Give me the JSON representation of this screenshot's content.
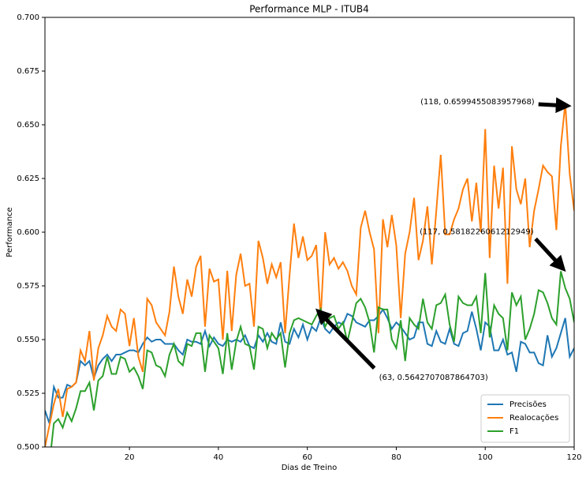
{
  "chart_data": {
    "type": "line",
    "title": "Performance MLP - ITUB4",
    "xlabel": "Dias de Treino",
    "ylabel": "Performance",
    "x": [
      1,
      2,
      3,
      4,
      5,
      6,
      7,
      8,
      9,
      10,
      11,
      12,
      13,
      14,
      15,
      16,
      17,
      18,
      19,
      20,
      21,
      22,
      23,
      24,
      25,
      26,
      27,
      28,
      29,
      30,
      31,
      32,
      33,
      34,
      35,
      36,
      37,
      38,
      39,
      40,
      41,
      42,
      43,
      44,
      45,
      46,
      47,
      48,
      49,
      50,
      51,
      52,
      53,
      54,
      55,
      56,
      57,
      58,
      59,
      60,
      61,
      62,
      63,
      64,
      65,
      66,
      67,
      68,
      69,
      70,
      71,
      72,
      73,
      74,
      75,
      76,
      77,
      78,
      79,
      80,
      81,
      82,
      83,
      84,
      85,
      86,
      87,
      88,
      89,
      90,
      91,
      92,
      93,
      94,
      95,
      96,
      97,
      98,
      99,
      100,
      101,
      102,
      103,
      104,
      105,
      106,
      107,
      108,
      109,
      110,
      111,
      112,
      113,
      114,
      115,
      116,
      117,
      118,
      119,
      120
    ],
    "series": [
      {
        "name": "Precisões",
        "color": "#1f77b4",
        "values": [
          0.517,
          0.511,
          0.528,
          0.523,
          0.523,
          0.529,
          0.528,
          0.53,
          0.54,
          0.538,
          0.54,
          0.532,
          0.538,
          0.541,
          0.543,
          0.54,
          0.543,
          0.543,
          0.544,
          0.545,
          0.545,
          0.544,
          0.548,
          0.551,
          0.549,
          0.55,
          0.55,
          0.548,
          0.548,
          0.548,
          0.545,
          0.543,
          0.55,
          0.549,
          0.549,
          0.548,
          0.554,
          0.547,
          0.551,
          0.548,
          0.547,
          0.55,
          0.549,
          0.55,
          0.549,
          0.552,
          0.547,
          0.546,
          0.552,
          0.549,
          0.553,
          0.549,
          0.548,
          0.558,
          0.549,
          0.548,
          0.555,
          0.551,
          0.557,
          0.55,
          0.556,
          0.554,
          0.56,
          0.555,
          0.553,
          0.556,
          0.558,
          0.557,
          0.562,
          0.561,
          0.558,
          0.557,
          0.556,
          0.559,
          0.559,
          0.561,
          0.564,
          0.56,
          0.555,
          0.558,
          0.556,
          0.553,
          0.55,
          0.551,
          0.558,
          0.558,
          0.548,
          0.547,
          0.554,
          0.549,
          0.548,
          0.555,
          0.548,
          0.547,
          0.553,
          0.554,
          0.563,
          0.555,
          0.545,
          0.558,
          0.556,
          0.545,
          0.545,
          0.55,
          0.543,
          0.544,
          0.535,
          0.549,
          0.548,
          0.544,
          0.544,
          0.539,
          0.538,
          0.552,
          0.542,
          0.546,
          0.553,
          0.56,
          0.542,
          0.546
        ]
      },
      {
        "name": "Realocações",
        "color": "#ff7f0e",
        "values": [
          0.5,
          0.51,
          0.52,
          0.527,
          0.514,
          0.527,
          0.528,
          0.53,
          0.545,
          0.54,
          0.554,
          0.531,
          0.546,
          0.552,
          0.561,
          0.556,
          0.554,
          0.564,
          0.562,
          0.547,
          0.56,
          0.542,
          0.535,
          0.569,
          0.566,
          0.558,
          0.555,
          0.552,
          0.563,
          0.584,
          0.57,
          0.562,
          0.578,
          0.57,
          0.584,
          0.589,
          0.556,
          0.583,
          0.577,
          0.578,
          0.55,
          0.582,
          0.554,
          0.58,
          0.59,
          0.575,
          0.576,
          0.556,
          0.596,
          0.588,
          0.576,
          0.585,
          0.579,
          0.586,
          0.553,
          0.58,
          0.604,
          0.588,
          0.598,
          0.587,
          0.589,
          0.594,
          0.56,
          0.6,
          0.585,
          0.588,
          0.583,
          0.586,
          0.582,
          0.575,
          0.571,
          0.602,
          0.61,
          0.6,
          0.592,
          0.553,
          0.606,
          0.593,
          0.608,
          0.594,
          0.56,
          0.59,
          0.6,
          0.616,
          0.587,
          0.596,
          0.612,
          0.585,
          0.61,
          0.636,
          0.599,
          0.599,
          0.606,
          0.611,
          0.62,
          0.625,
          0.605,
          0.623,
          0.6,
          0.648,
          0.588,
          0.631,
          0.611,
          0.63,
          0.576,
          0.64,
          0.62,
          0.613,
          0.625,
          0.593,
          0.61,
          0.62,
          0.631,
          0.628,
          0.626,
          0.601,
          0.64,
          0.6599455083957968,
          0.627,
          0.61
        ]
      },
      {
        "name": "F1",
        "color": "#2ca02c",
        "values": [
          0.49,
          0.492,
          0.511,
          0.513,
          0.509,
          0.516,
          0.512,
          0.518,
          0.526,
          0.526,
          0.53,
          0.517,
          0.531,
          0.533,
          0.542,
          0.534,
          0.534,
          0.542,
          0.541,
          0.535,
          0.537,
          0.533,
          0.527,
          0.545,
          0.544,
          0.538,
          0.537,
          0.533,
          0.543,
          0.548,
          0.54,
          0.538,
          0.548,
          0.547,
          0.553,
          0.553,
          0.535,
          0.552,
          0.549,
          0.546,
          0.534,
          0.553,
          0.536,
          0.549,
          0.556,
          0.548,
          0.547,
          0.536,
          0.556,
          0.555,
          0.546,
          0.553,
          0.55,
          0.553,
          0.537,
          0.553,
          0.559,
          0.56,
          0.559,
          0.558,
          0.557,
          0.561,
          0.5642707087864703,
          0.556,
          0.56,
          0.561,
          0.555,
          0.558,
          0.549,
          0.558,
          0.567,
          0.569,
          0.565,
          0.558,
          0.544,
          0.565,
          0.564,
          0.564,
          0.55,
          0.546,
          0.559,
          0.54,
          0.56,
          0.557,
          0.555,
          0.569,
          0.558,
          0.555,
          0.566,
          0.567,
          0.571,
          0.557,
          0.549,
          0.57,
          0.567,
          0.566,
          0.566,
          0.57,
          0.553,
          0.581,
          0.551,
          0.566,
          0.562,
          0.56,
          0.545,
          0.572,
          0.566,
          0.57,
          0.55,
          0.555,
          0.562,
          0.573,
          0.572,
          0.567,
          0.56,
          0.557,
          0.5818226061212949,
          0.574,
          0.569,
          0.558
        ]
      }
    ],
    "xlim": [
      1,
      120
    ],
    "xticks": [
      20,
      40,
      60,
      80,
      100,
      120
    ],
    "ylim": [
      0.5,
      0.7
    ],
    "yticks": [
      {
        "value": 0.5,
        "label": "0.500"
      },
      {
        "value": 0.525,
        "label": "0.525"
      },
      {
        "value": 0.55,
        "label": "0.550"
      },
      {
        "value": 0.575,
        "label": "0.575"
      },
      {
        "value": 0.6,
        "label": "0.600"
      },
      {
        "value": 0.625,
        "label": "0.625"
      },
      {
        "value": 0.65,
        "label": "0.650"
      },
      {
        "value": 0.675,
        "label": "0.675"
      },
      {
        "value": 0.7,
        "label": "0.700"
      }
    ],
    "legend": "lower right",
    "annotations": [
      {
        "text": "(118, 0.6599455083957968)",
        "x": 118,
        "y": 0.6599455083957968
      },
      {
        "text": "(117, 0.5818226061212949)",
        "x": 117,
        "y": 0.5818226061212949
      },
      {
        "text": "(63, 0.5642707087864703)",
        "x": 63,
        "y": 0.5642707087864703
      }
    ]
  }
}
